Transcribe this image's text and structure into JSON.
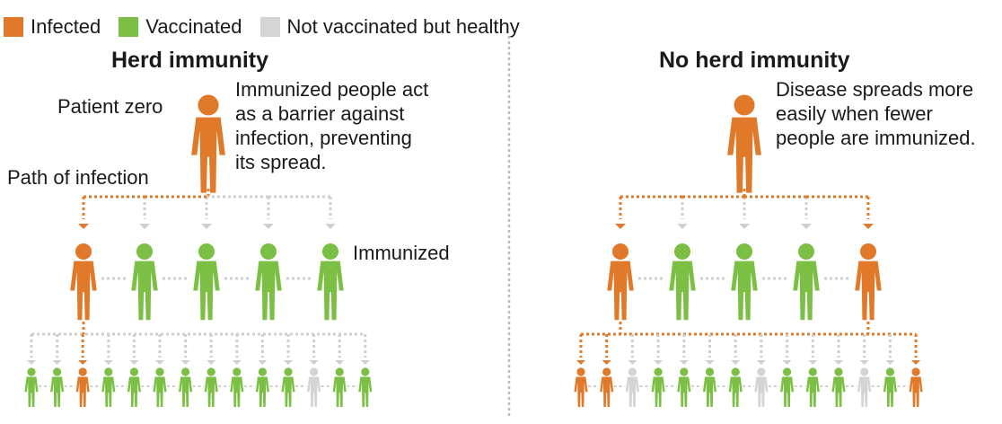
{
  "legend": [
    {
      "label": "Infected",
      "color": "#e07a2a"
    },
    {
      "label": "Vaccinated",
      "color": "#7bbf44"
    },
    {
      "label": "Not vaccinated but healthy",
      "color": "#d4d4d4"
    }
  ],
  "colors": {
    "infected": "#e07a2a",
    "vaccinated": "#7bbf44",
    "healthy": "#d4d4d4"
  },
  "left": {
    "title": "Herd immunity",
    "patient_zero_label": "Patient zero",
    "path_label": "Path of infection",
    "note_lines": [
      "Immunized people act",
      "as a barrier against",
      "infection, preventing",
      "its spread."
    ],
    "immunized_label": "Immunized",
    "second_generation": [
      "infected",
      "vaccinated",
      "vaccinated",
      "vaccinated",
      "vaccinated"
    ],
    "third_generation": [
      "vaccinated",
      "vaccinated",
      "infected",
      "vaccinated",
      "vaccinated",
      "vaccinated",
      "vaccinated",
      "vaccinated",
      "vaccinated",
      "vaccinated",
      "vaccinated",
      "healthy",
      "vaccinated",
      "vaccinated"
    ]
  },
  "right": {
    "title": "No herd immunity",
    "note_lines": [
      "Disease spreads more",
      "easily when fewer",
      "people are immunized."
    ],
    "second_generation": [
      "infected",
      "vaccinated",
      "vaccinated",
      "vaccinated",
      "infected"
    ],
    "third_generation": [
      "infected",
      "infected",
      "healthy",
      "vaccinated",
      "vaccinated",
      "vaccinated",
      "vaccinated",
      "healthy",
      "vaccinated",
      "vaccinated",
      "vaccinated",
      "healthy",
      "vaccinated",
      "infected"
    ]
  }
}
